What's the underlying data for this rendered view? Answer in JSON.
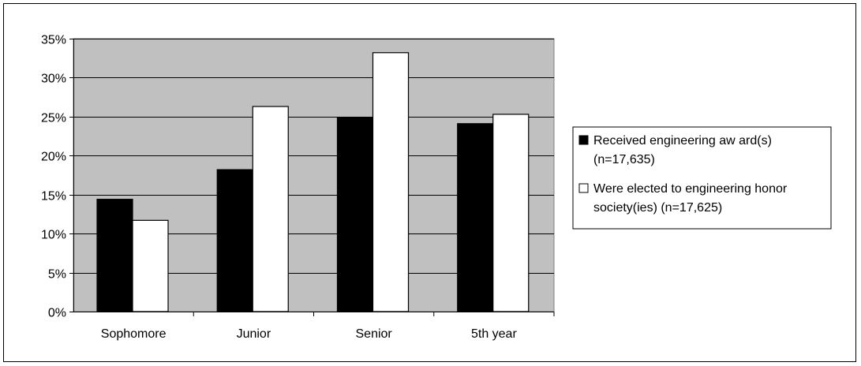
{
  "chart_data": {
    "type": "bar",
    "categories": [
      "Sophomore",
      "Junior",
      "Senior",
      "5th year"
    ],
    "series": [
      {
        "name": "Received engineering aw ard(s) (n=17,635)",
        "legend_lines": [
          "Received engineering aw ard(s)",
          "(n=17,635)"
        ],
        "color": "#000000",
        "values": [
          14.4,
          18.2,
          24.9,
          24.1
        ]
      },
      {
        "name": "Were elected to engineering honor society(ies) (n=17,625)",
        "legend_lines": [
          "Were elected to engineering honor",
          "society(ies) (n=17,625)"
        ],
        "color": "#ffffff",
        "values": [
          11.7,
          26.3,
          33.2,
          25.3
        ]
      }
    ],
    "yticks": [
      "0%",
      "5%",
      "10%",
      "15%",
      "20%",
      "25%",
      "30%",
      "35%"
    ],
    "ylim": [
      0,
      35
    ],
    "ytick_step": 5,
    "title": "",
    "xlabel": "",
    "ylabel": "",
    "plot_background": "#c0c0c0",
    "grid": true,
    "legend_position": "right"
  }
}
